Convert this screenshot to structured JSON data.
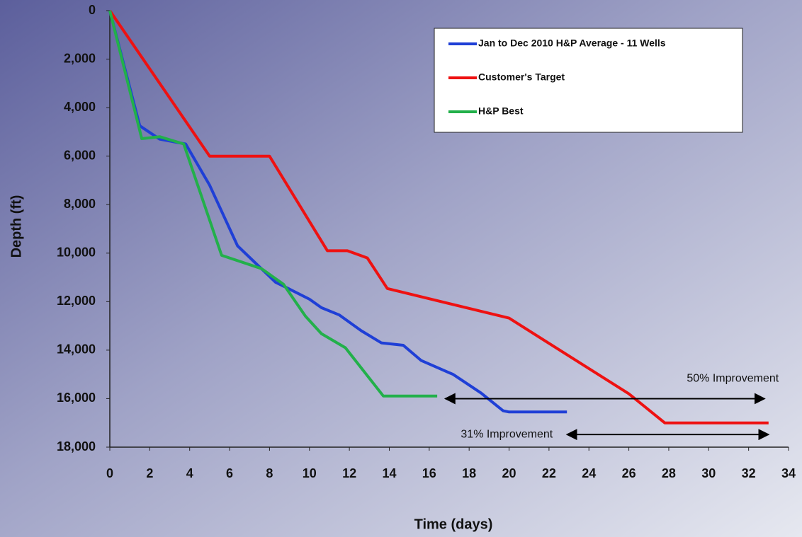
{
  "chart_data": {
    "type": "line",
    "x_label": "Time (days)",
    "y_label": "Depth (ft)",
    "xlim": [
      0,
      34
    ],
    "xticks": [
      0,
      2,
      4,
      6,
      8,
      10,
      12,
      14,
      16,
      18,
      20,
      22,
      24,
      26,
      28,
      30,
      32,
      34
    ],
    "ylim": [
      0,
      18000
    ],
    "y_reversed": true,
    "yticks": [
      0,
      {
        "value": 2000,
        "label": "2,000"
      },
      {
        "value": 4000,
        "label": "4,000"
      },
      {
        "value": 6000,
        "label": "6,000"
      },
      {
        "value": 8000,
        "label": "8,000"
      },
      {
        "value": 10000,
        "label": "10,000"
      },
      {
        "value": 12000,
        "label": "12,000"
      },
      {
        "value": 14000,
        "label": "14,000"
      },
      {
        "value": 16000,
        "label": "16,000"
      },
      {
        "value": 18000,
        "label": "18,000"
      }
    ],
    "grid": false,
    "legend": "upper right",
    "series": [
      {
        "name": "Jan to Dec 2010 H&P Average - 11 Wells",
        "color": "#1f3fd6",
        "x": [
          0,
          1.5,
          2.5,
          3.8,
          5,
          6.4,
          8.3,
          8.8,
          10,
          10.6,
          11.5,
          12.6,
          13.6,
          14.7,
          15.6,
          17.2,
          18.6,
          19.7,
          20,
          22.9
        ],
        "values": [
          0,
          4750,
          5300,
          5500,
          7200,
          9700,
          11200,
          11400,
          11900,
          12250,
          12550,
          13200,
          13700,
          13800,
          14430,
          15000,
          15770,
          16500,
          16550,
          16550
        ]
      },
      {
        "name": "Customer's Target",
        "color": "#ee1111",
        "x": [
          0,
          5,
          8,
          10.9,
          11.9,
          12.9,
          13.9,
          20,
          26,
          27.8,
          33
        ],
        "values": [
          0,
          6000,
          6000,
          9900,
          9900,
          10200,
          11460,
          12680,
          15800,
          17000,
          17000
        ]
      },
      {
        "name": "H&P Best",
        "color": "#22b04a",
        "x": [
          0,
          1.6,
          2.5,
          3.7,
          5.6,
          7.6,
          8.7,
          9.8,
          10.6,
          11.8,
          13.7,
          16.4
        ],
        "values": [
          0,
          5280,
          5200,
          5500,
          10090,
          10640,
          11280,
          12600,
          13320,
          13900,
          15890,
          15890
        ]
      }
    ],
    "annotations": [
      {
        "text": "50% Improvement",
        "x_start": 16.8,
        "x_end": 32.8,
        "y": 16000
      },
      {
        "text": "31% Improvement",
        "x_start": 22.9,
        "x_end": 33,
        "y": 17480
      }
    ]
  }
}
